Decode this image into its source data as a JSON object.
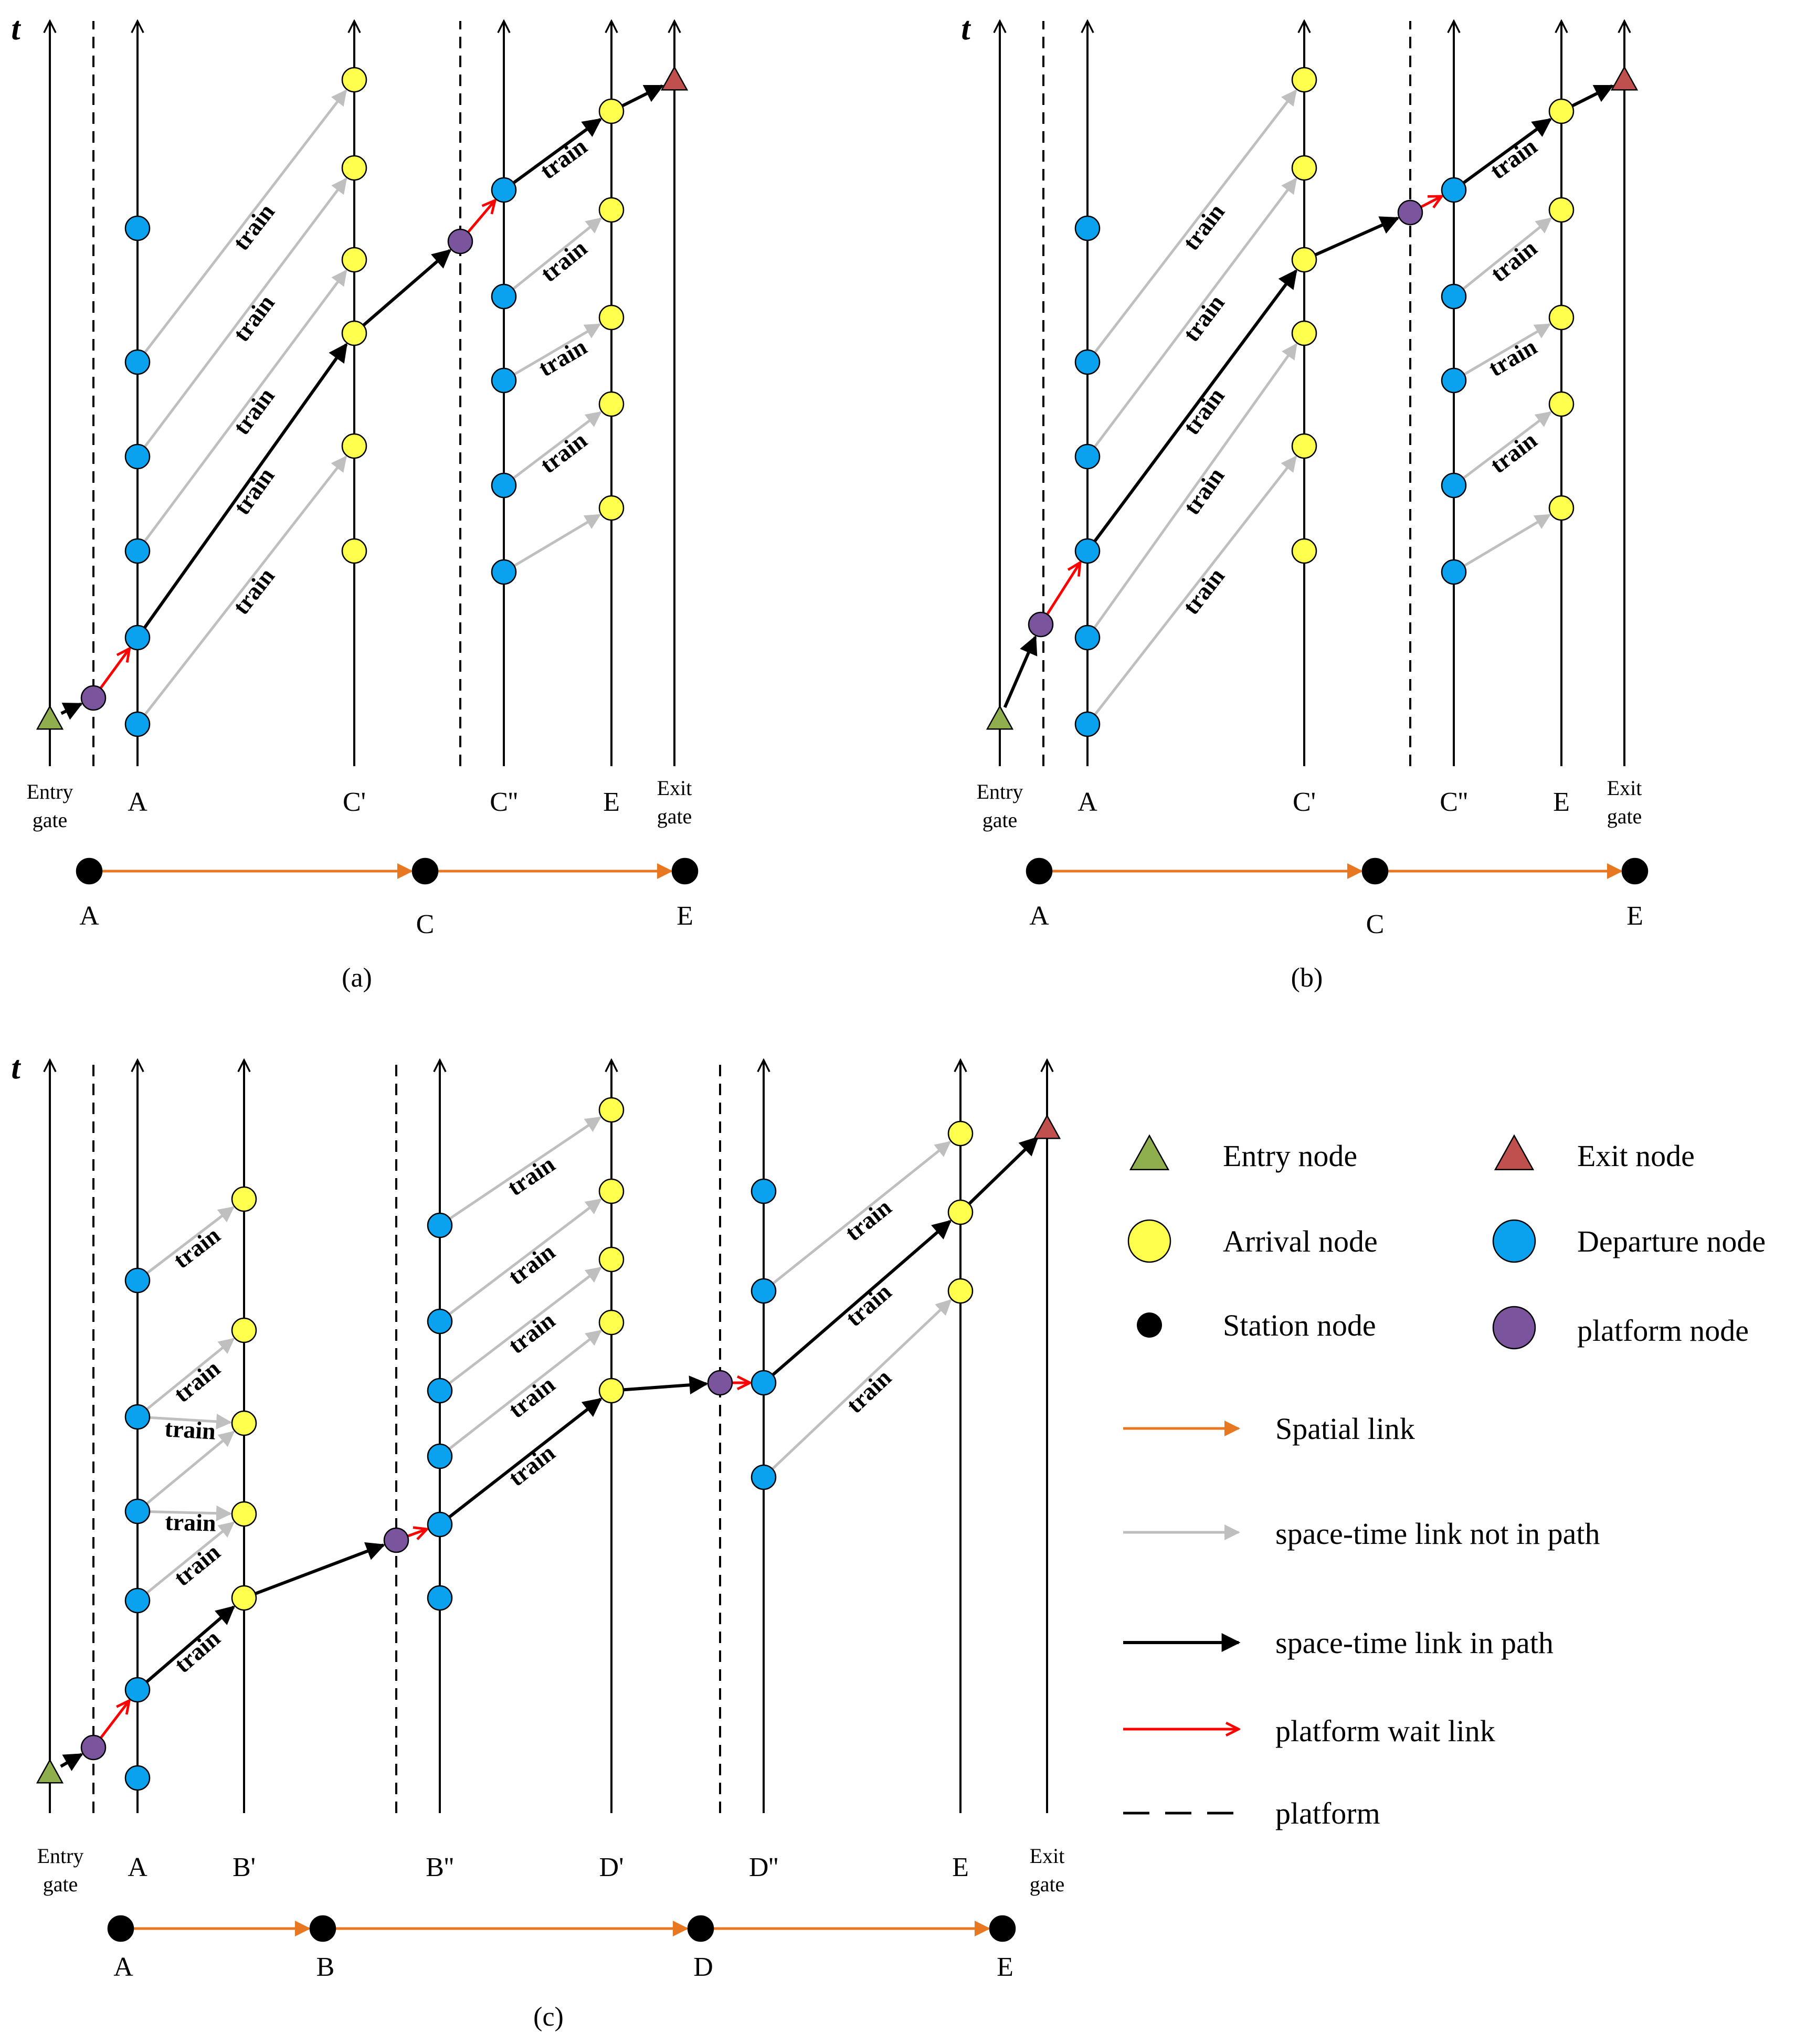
{
  "figure": {
    "time_axis_label": "t",
    "train_label": "train",
    "entry_gate_label": [
      "Entry",
      "gate"
    ],
    "exit_gate_label": [
      "Exit",
      "gate"
    ]
  },
  "panels": {
    "a": {
      "caption": "(a)",
      "columns": [
        "A",
        "C'",
        "C''",
        "E"
      ],
      "stations": [
        "A",
        "C",
        "E"
      ]
    },
    "b": {
      "caption": "(b)",
      "columns": [
        "A",
        "C'",
        "C''",
        "E"
      ],
      "stations": [
        "A",
        "C",
        "E"
      ]
    },
    "c": {
      "caption": "(c)",
      "columns": [
        "A",
        "B'",
        "B''",
        "D'",
        "D''",
        "E"
      ],
      "stations": [
        "A",
        "B",
        "D",
        "E"
      ]
    }
  },
  "legend": {
    "entry_node": "Entry node",
    "exit_node": "Exit node",
    "arrival_node": "Arrival node",
    "departure_node": "Departure node",
    "station_node": "Station node",
    "platform_node": "platform node",
    "spatial_link": "Spatial link",
    "link_not_in_path": "space-time link not in path",
    "link_in_path": "space-time link in path",
    "platform_wait_link": "platform wait link",
    "platform": "platform"
  },
  "colors": {
    "arrival": "#ffff4d",
    "departure": "#0aa2ef",
    "platform": "#7a559d",
    "entry": "#8faf4f",
    "exit": "#c0504d",
    "spatial": "#e87722",
    "grey_link": "#bfbfbf",
    "black_link": "#000000",
    "wait_link": "#ff0000"
  }
}
